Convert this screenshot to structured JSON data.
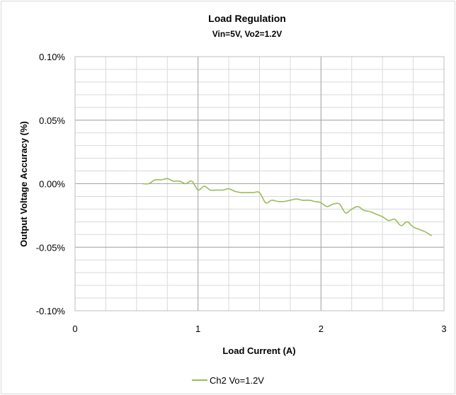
{
  "chart_data": {
    "type": "line",
    "title": "Load Regulation",
    "subtitle": "Vin=5V, Vo2=1.2V",
    "xlabel": "Load Current (A)",
    "ylabel": "Output Voltage Accuracy (%)",
    "xlim": [
      0,
      3
    ],
    "ylim": [
      -0.1,
      0.1
    ],
    "x_ticks": [
      0,
      1,
      2,
      3
    ],
    "x_tick_labels": [
      "0",
      "1",
      "2",
      "3"
    ],
    "y_ticks": [
      0.1,
      0.05,
      0.0,
      -0.05,
      -0.1
    ],
    "y_tick_labels": [
      "0.10%",
      "0.05%",
      "0.00%",
      "-0.05%",
      "-0.10%"
    ],
    "x_minor_step": 0.25,
    "y_minor_step": 0.01,
    "grid": true,
    "legend_position": "bottom-center",
    "series": [
      {
        "name": "Ch2 Vo=1.2V",
        "color": "#9bbb59",
        "x": [
          0.55,
          0.6,
          0.65,
          0.7,
          0.75,
          0.8,
          0.85,
          0.9,
          0.95,
          1.0,
          1.05,
          1.1,
          1.15,
          1.2,
          1.25,
          1.3,
          1.35,
          1.4,
          1.45,
          1.5,
          1.55,
          1.6,
          1.65,
          1.7,
          1.75,
          1.8,
          1.85,
          1.9,
          1.95,
          2.0,
          2.05,
          2.1,
          2.15,
          2.2,
          2.25,
          2.3,
          2.35,
          2.4,
          2.45,
          2.5,
          2.55,
          2.6,
          2.65,
          2.7,
          2.75,
          2.8,
          2.85,
          2.9
        ],
        "y": [
          0.0,
          0.0,
          0.003,
          0.003,
          0.004,
          0.002,
          0.002,
          0.0,
          0.002,
          -0.005,
          -0.002,
          -0.005,
          -0.005,
          -0.005,
          -0.004,
          -0.006,
          -0.007,
          -0.007,
          -0.007,
          -0.007,
          -0.015,
          -0.013,
          -0.014,
          -0.014,
          -0.013,
          -0.012,
          -0.013,
          -0.013,
          -0.014,
          -0.015,
          -0.018,
          -0.016,
          -0.016,
          -0.023,
          -0.02,
          -0.018,
          -0.021,
          -0.022,
          -0.024,
          -0.026,
          -0.029,
          -0.028,
          -0.033,
          -0.03,
          -0.034,
          -0.036,
          -0.038,
          -0.041
        ]
      }
    ]
  }
}
